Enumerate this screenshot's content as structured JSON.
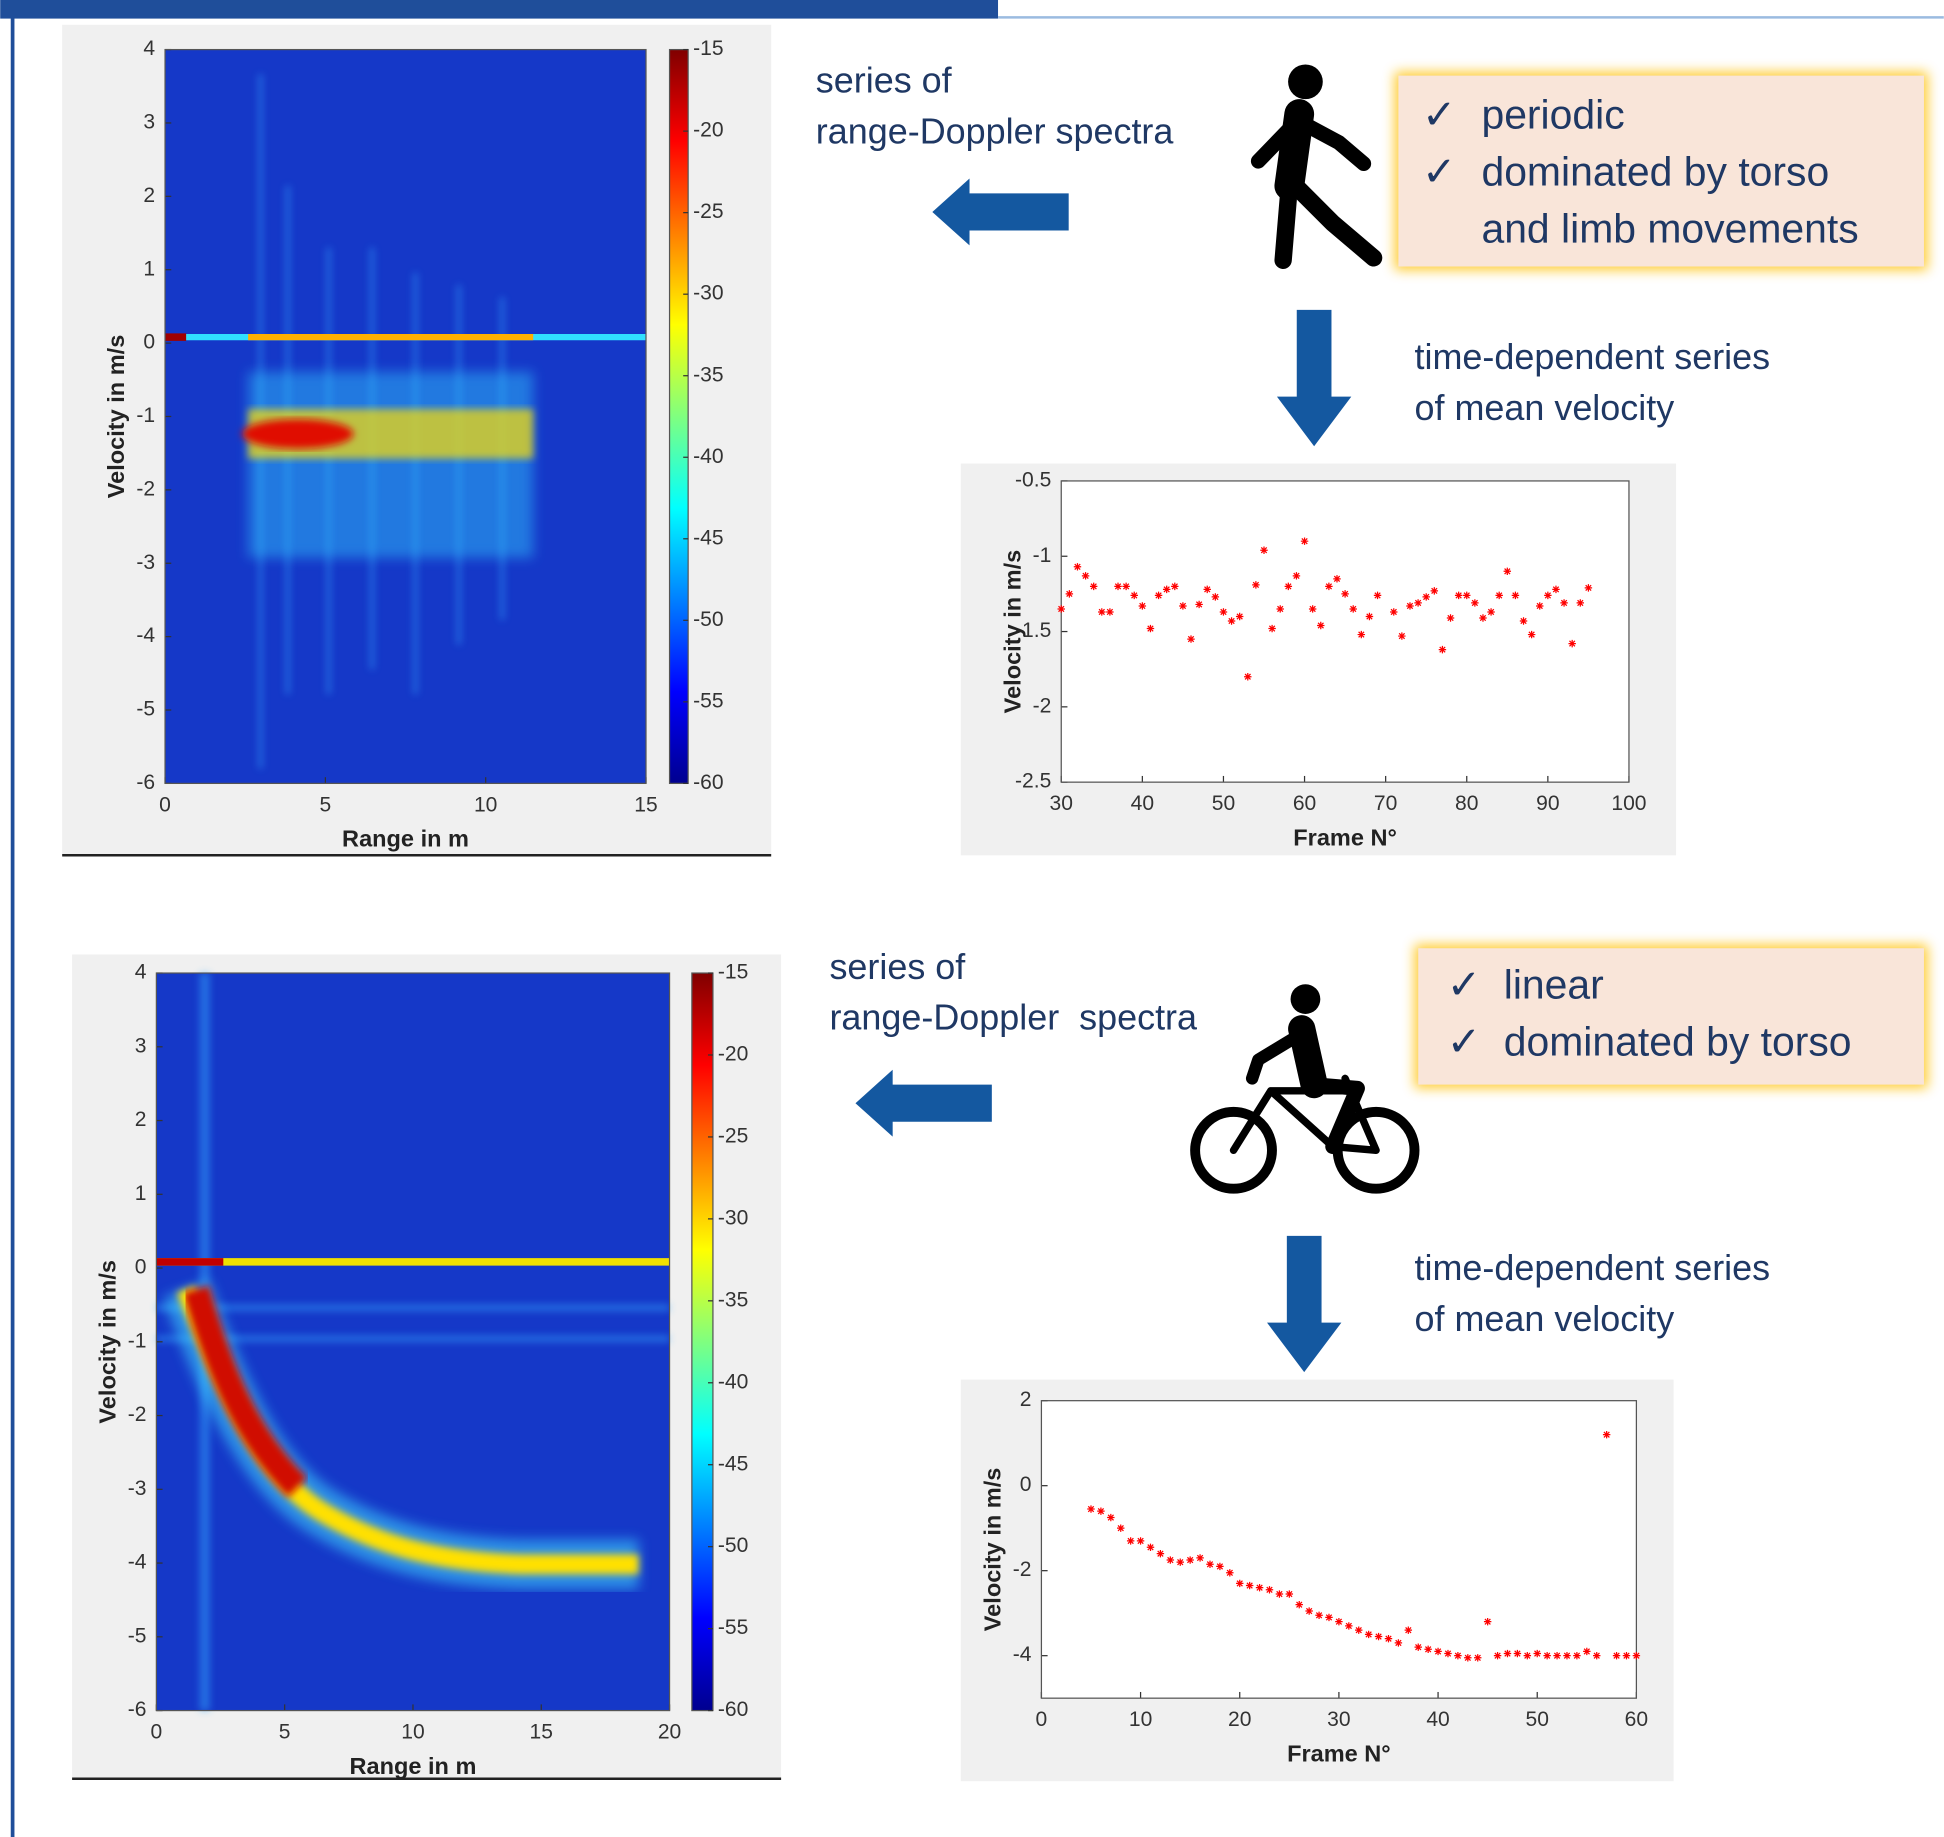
{
  "slide": {
    "walking": {
      "left_label": [
        "series of",
        "range-Doppler spectra"
      ],
      "check": "✓",
      "properties": [
        "periodic",
        "dominated by torso",
        "and limb movements"
      ],
      "down_label": [
        "time-dependent series",
        "of mean velocity"
      ]
    },
    "cycling": {
      "left_label": [
        "series of",
        "range-Doppler  spectra"
      ],
      "check": "✓",
      "properties": [
        "linear",
        "dominated by torso"
      ],
      "down_label": [
        "time-dependent series",
        "of mean velocity"
      ]
    }
  },
  "chart_data": [
    {
      "type": "heatmap",
      "colormap": "jet",
      "xlabel": "Range in m",
      "ylabel": "Velocity in m/s",
      "xlim": [
        0,
        15
      ],
      "ylim": [
        -6,
        4
      ],
      "xticks": [
        0,
        5,
        10,
        15
      ],
      "yticks": [
        -6,
        -5,
        -4,
        -3,
        -2,
        -1,
        0,
        1,
        2,
        3,
        4
      ],
      "colorbar": {
        "clim": [
          -60,
          -15
        ],
        "ticks": [
          -60,
          -55,
          -50,
          -45,
          -40,
          -35,
          -30,
          -25,
          -20,
          -15
        ]
      }
    },
    {
      "type": "scatter",
      "xlabel": "Frame N°",
      "ylabel": "Velocity in m/s",
      "marker": "*",
      "color": "#ff0000",
      "xlim": [
        30,
        100
      ],
      "ylim": [
        -2.5,
        -0.5
      ],
      "xticks": [
        30,
        40,
        50,
        60,
        70,
        80,
        90,
        100
      ],
      "yticks": [
        -2.5,
        -2,
        -1.5,
        -1,
        -0.5
      ],
      "x": [
        30,
        31,
        32,
        33,
        34,
        35,
        36,
        37,
        38,
        39,
        40,
        41,
        42,
        43,
        44,
        45,
        46,
        47,
        48,
        49,
        50,
        51,
        52,
        53,
        54,
        55,
        56,
        57,
        58,
        59,
        60,
        61,
        62,
        63,
        64,
        65,
        66,
        67,
        68,
        69,
        71,
        72,
        73,
        74,
        75,
        76,
        77,
        78,
        79,
        80,
        81,
        82,
        83,
        84,
        85,
        86,
        87,
        88,
        89,
        90,
        91,
        92,
        93,
        94,
        95
      ],
      "values": [
        -1.35,
        -1.25,
        -1.07,
        -1.13,
        -1.2,
        -1.37,
        -1.37,
        -1.2,
        -1.2,
        -1.26,
        -1.33,
        -1.48,
        -1.26,
        -1.22,
        -1.2,
        -1.33,
        -1.55,
        -1.32,
        -1.22,
        -1.27,
        -1.37,
        -1.43,
        -1.4,
        -1.8,
        -1.19,
        -0.96,
        -1.48,
        -1.35,
        -1.2,
        -1.13,
        -0.9,
        -1.35,
        -1.46,
        -1.2,
        -1.15,
        -1.25,
        -1.35,
        -1.52,
        -1.4,
        -1.26,
        -1.37,
        -1.53,
        -1.33,
        -1.31,
        -1.27,
        -1.23,
        -1.62,
        -1.41,
        -1.26,
        -1.26,
        -1.31,
        -1.41,
        -1.37,
        -1.26,
        -1.1,
        -1.26,
        -1.43,
        -1.52,
        -1.33,
        -1.26,
        -1.22,
        -1.31,
        -1.58,
        -1.31,
        -1.21
      ]
    },
    {
      "type": "heatmap",
      "colormap": "jet",
      "xlabel": "Range in m",
      "ylabel": "Velocity in m/s",
      "xlim": [
        0,
        20
      ],
      "ylim": [
        -6,
        4
      ],
      "xticks": [
        0,
        5,
        10,
        15,
        20
      ],
      "yticks": [
        -6,
        -5,
        -4,
        -3,
        -2,
        -1,
        0,
        1,
        2,
        3,
        4
      ],
      "colorbar": {
        "clim": [
          -60,
          -15
        ],
        "ticks": [
          -60,
          -55,
          -50,
          -45,
          -40,
          -35,
          -30,
          -25,
          -20,
          -15
        ]
      }
    },
    {
      "type": "scatter",
      "xlabel": "Frame N°",
      "ylabel": "Velocity in m/s",
      "marker": "*",
      "color": "#ff0000",
      "xlim": [
        0,
        60
      ],
      "ylim": [
        -5,
        2
      ],
      "xticks": [
        0,
        10,
        20,
        30,
        40,
        50,
        60
      ],
      "yticks": [
        -4,
        -2,
        0,
        2
      ],
      "x": [
        5,
        6,
        7,
        8,
        9,
        10,
        11,
        12,
        13,
        14,
        15,
        16,
        17,
        18,
        19,
        20,
        21,
        22,
        23,
        24,
        25,
        26,
        27,
        28,
        29,
        30,
        31,
        32,
        33,
        34,
        35,
        36,
        37,
        38,
        39,
        40,
        41,
        42,
        43,
        44,
        45,
        46,
        47,
        48,
        49,
        50,
        51,
        52,
        53,
        54,
        55,
        56,
        57,
        58,
        59,
        60
      ],
      "values": [
        -0.55,
        -0.6,
        -0.75,
        -1.0,
        -1.3,
        -1.3,
        -1.45,
        -1.6,
        -1.75,
        -1.8,
        -1.75,
        -1.7,
        -1.85,
        -1.9,
        -2.05,
        -2.3,
        -2.35,
        -2.4,
        -2.45,
        -2.55,
        -2.55,
        -2.8,
        -2.95,
        -3.05,
        -3.1,
        -3.2,
        -3.3,
        -3.4,
        -3.5,
        -3.55,
        -3.6,
        -3.7,
        -3.4,
        -3.8,
        -3.85,
        -3.9,
        -3.95,
        -4.0,
        -4.05,
        -4.05,
        -3.2,
        -4.0,
        -3.95,
        -3.95,
        -4.0,
        -3.95,
        -4.0,
        -4.0,
        -4.0,
        -4.0,
        -3.9,
        -4.0,
        1.2,
        -4.0,
        -4.0,
        -4.0
      ]
    }
  ]
}
